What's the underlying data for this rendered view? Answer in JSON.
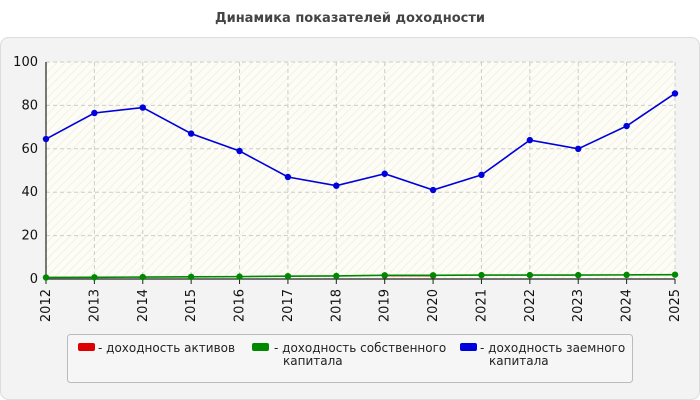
{
  "chart_data": {
    "type": "line",
    "title": "Динамика показателей доходности",
    "xlabel": "",
    "ylabel": "",
    "x": [
      "2012",
      "2013",
      "2014",
      "2015",
      "2016",
      "2017",
      "2018",
      "2019",
      "2020",
      "2021",
      "2022",
      "2023",
      "2024",
      "2025"
    ],
    "ylim": [
      0,
      100
    ],
    "yticks": [
      0,
      20,
      40,
      60,
      80,
      100
    ],
    "grid": true,
    "legend_position": "bottom",
    "series": [
      {
        "name": "- доходность активов",
        "color": "#dd0000",
        "values": [
          null,
          null,
          null,
          null,
          null,
          null,
          null,
          1.6,
          1.6,
          null,
          null,
          null,
          null,
          null
        ]
      },
      {
        "name": "- доходность собственного капитала",
        "color": "#008800",
        "values": [
          0.7,
          0.8,
          0.9,
          1.0,
          1.1,
          1.3,
          1.4,
          1.7,
          1.7,
          1.8,
          1.8,
          1.8,
          1.9,
          2.0
        ]
      },
      {
        "name": "- доходность заемного капитала",
        "color": "#0000dd",
        "values": [
          64.5,
          76.5,
          79,
          67,
          59,
          47,
          43,
          48.5,
          41,
          48,
          64,
          60,
          70.5,
          85.5
        ]
      }
    ]
  }
}
